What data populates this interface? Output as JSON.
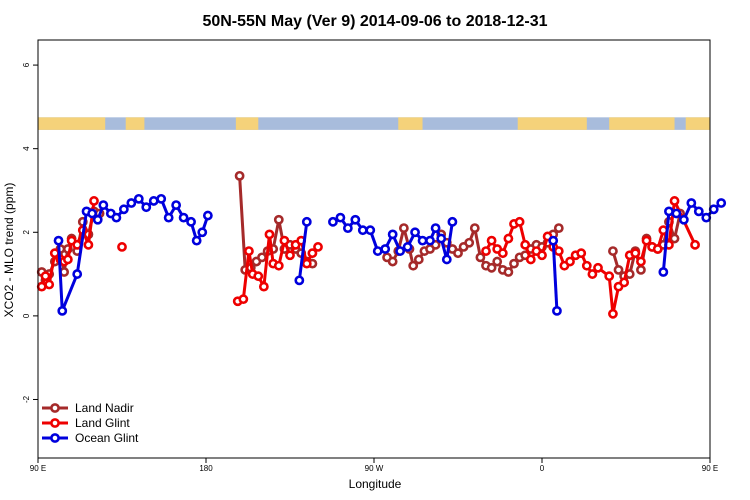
{
  "chart_data": {
    "type": "line",
    "title": "50N-55N May (Ver 9)   2014-09-06 to 2018-12-31",
    "xlabel": "Longitude",
    "ylabel": "XCO2 - MLO trend (ppm)",
    "xlim": [
      90,
      450
    ],
    "ylim": [
      -3.4,
      6.6
    ],
    "x_ticks": [
      {
        "value": 90,
        "label": "90 E"
      },
      {
        "value": 180,
        "label": "180"
      },
      {
        "value": 270,
        "label": "90 W"
      },
      {
        "value": 360,
        "label": "0"
      },
      {
        "value": 450,
        "label": "90 E"
      },
      {
        "value": 540,
        "label": "180"
      }
    ],
    "y_ticks": [
      {
        "value": -2,
        "label": "-2"
      },
      {
        "value": 0,
        "label": "0"
      },
      {
        "value": 2,
        "label": "2"
      },
      {
        "value": 4,
        "label": "4"
      },
      {
        "value": 6,
        "label": "6"
      }
    ],
    "legend_position": "bottom-left",
    "grid": false,
    "land_ocean_strip": {
      "y_range": [
        4.45,
        4.75
      ],
      "land_color": "#f5d27a",
      "ocean_color": "#a8bcdc"
    },
    "series": [
      {
        "name": "Land Nadir",
        "color": "#a52a2a",
        "points": [
          [
            92,
            1.05
          ],
          [
            94,
            0.85
          ],
          [
            96,
            1.0
          ],
          [
            99,
            1.3
          ],
          [
            102,
            1.6
          ],
          [
            104,
            1.05
          ],
          [
            106,
            1.6
          ],
          [
            108,
            1.85
          ],
          [
            111,
            1.55
          ],
          [
            114,
            2.25
          ],
          [
            117,
            1.95
          ],
          [
            120,
            2.5
          ],
          [
            123,
            2.45
          ],
          [
            198,
            3.35
          ],
          [
            201,
            1.1
          ],
          [
            204,
            1.15
          ],
          [
            207,
            1.3
          ],
          [
            210,
            1.4
          ],
          [
            213,
            1.55
          ],
          [
            216,
            1.6
          ],
          [
            219,
            2.3
          ],
          [
            222,
            1.6
          ],
          [
            225,
            1.7
          ],
          [
            228,
            1.6
          ],
          [
            231,
            1.5
          ],
          [
            234,
            1.3
          ],
          [
            237,
            1.25
          ],
          [
            277,
            1.4
          ],
          [
            280,
            1.3
          ],
          [
            283,
            1.55
          ],
          [
            286,
            2.1
          ],
          [
            289,
            1.6
          ],
          [
            291,
            1.2
          ],
          [
            294,
            1.35
          ],
          [
            297,
            1.55
          ],
          [
            300,
            1.6
          ],
          [
            303,
            1.7
          ],
          [
            306,
            1.95
          ],
          [
            309,
            1.75
          ],
          [
            312,
            1.6
          ],
          [
            315,
            1.5
          ],
          [
            318,
            1.65
          ],
          [
            321,
            1.75
          ],
          [
            324,
            2.1
          ],
          [
            327,
            1.4
          ],
          [
            330,
            1.2
          ],
          [
            333,
            1.15
          ],
          [
            336,
            1.3
          ],
          [
            339,
            1.1
          ],
          [
            342,
            1.05
          ],
          [
            345,
            1.25
          ],
          [
            348,
            1.4
          ],
          [
            351,
            1.45
          ],
          [
            354,
            1.6
          ],
          [
            357,
            1.7
          ],
          [
            360,
            1.65
          ],
          [
            363,
            1.75
          ],
          [
            366,
            1.95
          ],
          [
            369,
            2.1
          ],
          [
            398,
            1.55
          ],
          [
            401,
            1.1
          ],
          [
            404,
            0.95
          ],
          [
            407,
            1.0
          ],
          [
            410,
            1.55
          ],
          [
            413,
            1.1
          ],
          [
            416,
            1.85
          ],
          [
            419,
            1.65
          ],
          [
            422,
            1.6
          ],
          [
            425,
            1.7
          ],
          [
            428,
            2.25
          ],
          [
            431,
            1.85
          ],
          [
            434,
            2.45
          ]
        ]
      },
      {
        "name": "Land Glint",
        "color": "#ee0000",
        "points": [
          [
            92,
            0.7
          ],
          [
            94,
            0.95
          ],
          [
            96,
            0.75
          ],
          [
            99,
            1.5
          ],
          [
            102,
            1.35
          ],
          [
            104,
            1.3
          ],
          [
            106,
            1.35
          ],
          [
            108,
            1.8
          ],
          [
            111,
            1.7
          ],
          [
            114,
            2.05
          ],
          [
            117,
            1.7
          ],
          [
            120,
            2.75
          ],
          [
            135,
            1.65
          ],
          [
            197,
            0.35
          ],
          [
            200,
            0.4
          ],
          [
            203,
            1.55
          ],
          [
            205,
            1.0
          ],
          [
            208,
            0.95
          ],
          [
            211,
            0.7
          ],
          [
            214,
            1.95
          ],
          [
            216,
            1.25
          ],
          [
            219,
            1.2
          ],
          [
            222,
            1.8
          ],
          [
            225,
            1.45
          ],
          [
            228,
            1.7
          ],
          [
            231,
            1.8
          ],
          [
            234,
            1.25
          ],
          [
            237,
            1.5
          ],
          [
            240,
            1.65
          ],
          [
            330,
            1.55
          ],
          [
            333,
            1.8
          ],
          [
            336,
            1.6
          ],
          [
            339,
            1.5
          ],
          [
            342,
            1.85
          ],
          [
            345,
            2.2
          ],
          [
            348,
            2.25
          ],
          [
            351,
            1.7
          ],
          [
            354,
            1.35
          ],
          [
            357,
            1.55
          ],
          [
            360,
            1.45
          ],
          [
            363,
            1.9
          ],
          [
            366,
            1.65
          ],
          [
            369,
            1.55
          ],
          [
            372,
            1.2
          ],
          [
            375,
            1.3
          ],
          [
            378,
            1.45
          ],
          [
            381,
            1.5
          ],
          [
            384,
            1.2
          ],
          [
            387,
            1.0
          ],
          [
            390,
            1.15
          ],
          [
            396,
            0.95
          ],
          [
            398,
            0.05
          ],
          [
            401,
            0.7
          ],
          [
            404,
            0.8
          ],
          [
            407,
            1.45
          ],
          [
            410,
            1.5
          ],
          [
            413,
            1.3
          ],
          [
            416,
            1.8
          ],
          [
            419,
            1.65
          ],
          [
            422,
            1.6
          ],
          [
            425,
            2.05
          ],
          [
            428,
            1.7
          ],
          [
            431,
            2.75
          ],
          [
            442,
            1.7
          ]
        ]
      },
      {
        "name": "Ocean Glint",
        "color": "#0000dd",
        "points": [
          [
            101,
            1.8
          ],
          [
            103,
            0.12
          ],
          [
            111,
            1.0
          ],
          [
            116,
            2.5
          ],
          [
            119,
            2.45
          ],
          [
            122,
            2.3
          ],
          [
            125,
            2.65
          ],
          [
            129,
            2.45
          ],
          [
            132,
            2.35
          ],
          [
            136,
            2.55
          ],
          [
            140,
            2.7
          ],
          [
            144,
            2.8
          ],
          [
            148,
            2.6
          ],
          [
            152,
            2.75
          ],
          [
            156,
            2.8
          ],
          [
            160,
            2.35
          ],
          [
            164,
            2.65
          ],
          [
            168,
            2.35
          ],
          [
            172,
            2.25
          ],
          [
            175,
            1.8
          ],
          [
            178,
            2.0
          ],
          [
            181,
            2.4
          ],
          [
            230,
            0.85
          ],
          [
            234,
            2.25
          ],
          [
            248,
            2.25
          ],
          [
            252,
            2.35
          ],
          [
            256,
            2.1
          ],
          [
            260,
            2.3
          ],
          [
            264,
            2.05
          ],
          [
            268,
            2.05
          ],
          [
            272,
            1.55
          ],
          [
            276,
            1.6
          ],
          [
            280,
            1.95
          ],
          [
            284,
            1.55
          ],
          [
            288,
            1.65
          ],
          [
            292,
            2.0
          ],
          [
            296,
            1.8
          ],
          [
            300,
            1.8
          ],
          [
            303,
            2.1
          ],
          [
            306,
            1.85
          ],
          [
            309,
            1.35
          ],
          [
            312,
            2.25
          ],
          [
            366,
            1.8
          ],
          [
            368,
            0.12
          ],
          [
            425,
            1.05
          ],
          [
            428,
            2.5
          ],
          [
            432,
            2.45
          ],
          [
            436,
            2.3
          ],
          [
            440,
            2.7
          ],
          [
            444,
            2.5
          ],
          [
            448,
            2.35
          ],
          [
            452,
            2.55
          ],
          [
            456,
            2.7
          ]
        ]
      }
    ]
  }
}
